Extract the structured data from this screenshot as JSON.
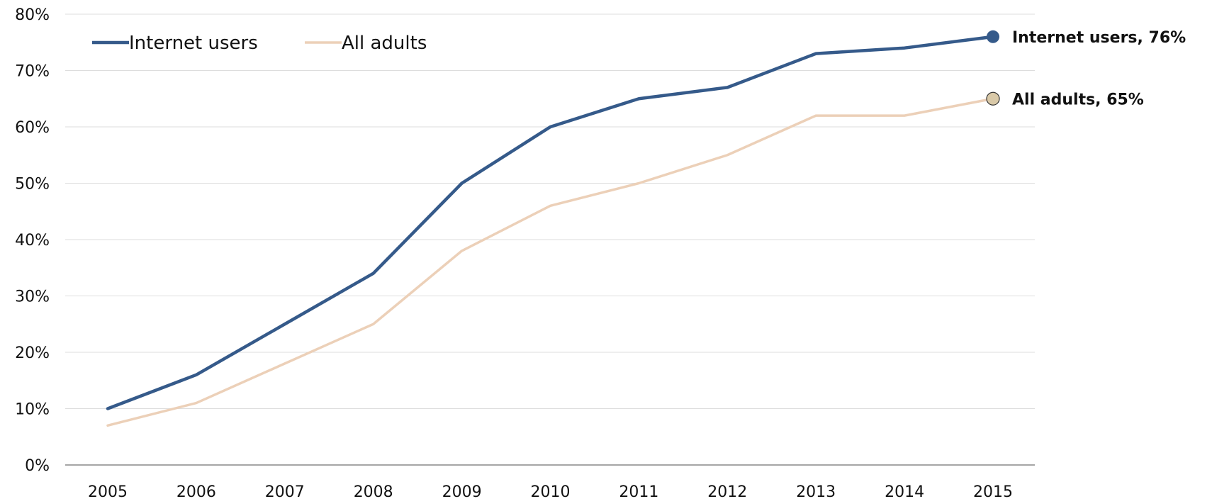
{
  "chart_data": {
    "type": "line",
    "x": [
      "2005",
      "2006",
      "2007",
      "2008",
      "2009",
      "2010",
      "2011",
      "2012",
      "2013",
      "2014",
      "2015"
    ],
    "series": [
      {
        "name": "Internet users",
        "color": "#355a8a",
        "values": [
          10,
          16,
          25,
          34,
          50,
          60,
          65,
          67,
          73,
          74,
          76
        ],
        "end_label": "Internet users, 76%"
      },
      {
        "name": "All adults",
        "color": "#ecd0b8",
        "marker_color": "#d9c9a8",
        "values": [
          7,
          11,
          18,
          25,
          38,
          46,
          50,
          55,
          62,
          62,
          65
        ],
        "end_label": "All adults, 65%"
      }
    ],
    "ylim": [
      0,
      80
    ],
    "yticks": [
      "0%",
      "10%",
      "20%",
      "30%",
      "40%",
      "50%",
      "60%",
      "70%",
      "80%"
    ],
    "grid": true,
    "legend_position": "top-left",
    "title": "",
    "xlabel": "",
    "ylabel": ""
  }
}
